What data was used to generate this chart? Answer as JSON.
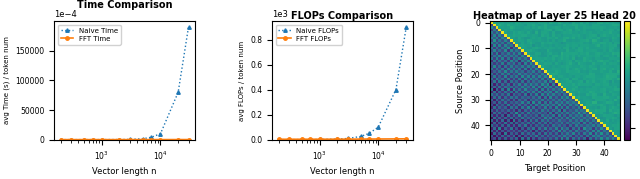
{
  "time_title": "Time Comparison",
  "time_xlabel": "Vector length n",
  "time_ylabel": "avg Time (s) / token num",
  "time_x": [
    200,
    300,
    500,
    700,
    1000,
    2000,
    3000,
    5000,
    7000,
    10000,
    20000,
    30000
  ],
  "naive_time": [
    1e-08,
    2e-08,
    5e-08,
    1e-07,
    3e-07,
    1.5e-06,
    4e-06,
    1.5e-05,
    4e-05,
    0.0001,
    0.0008,
    0.0019
  ],
  "fft_time": [
    1e-07,
    1e-07,
    1e-07,
    1e-07,
    1e-07,
    1.5e-07,
    2e-07,
    2.5e-07,
    3e-07,
    4e-07,
    6e-07,
    8e-07
  ],
  "time_scale": 0.0001,
  "naive_time_color": "#1f77b4",
  "fft_time_color": "#ff7f0e",
  "flops_title": "FLOPs Comparison",
  "flops_xlabel": "Vector length n",
  "flops_ylabel": "avg FLOPs / token num",
  "flops_x": [
    200,
    300,
    500,
    700,
    1000,
    2000,
    3000,
    5000,
    7000,
    10000,
    20000,
    30000
  ],
  "naive_flops": [
    50,
    100,
    250,
    500,
    1000,
    4000,
    9000,
    25000,
    50000,
    100000,
    400000,
    900000
  ],
  "fft_flops": [
    2800,
    2900,
    3000,
    3100,
    3200,
    3500,
    3800,
    4200,
    4600,
    5000,
    5800,
    6500
  ],
  "flops_scale": 1000.0,
  "naive_flops_color": "#1f77b4",
  "fft_flops_color": "#ff7f0e",
  "heatmap_title": "Heatmap of Layer 25 Head 20",
  "heatmap_xlabel": "Target Position",
  "heatmap_ylabel": "Source Position",
  "heatmap_size": 46,
  "heatmap_vmin": -0.5,
  "heatmap_vmax": 0.5,
  "heatmap_cmap": "viridis",
  "heatmap_xticks": [
    0,
    10,
    20,
    30,
    40
  ],
  "heatmap_yticks": [
    0,
    10,
    20,
    30,
    40
  ]
}
